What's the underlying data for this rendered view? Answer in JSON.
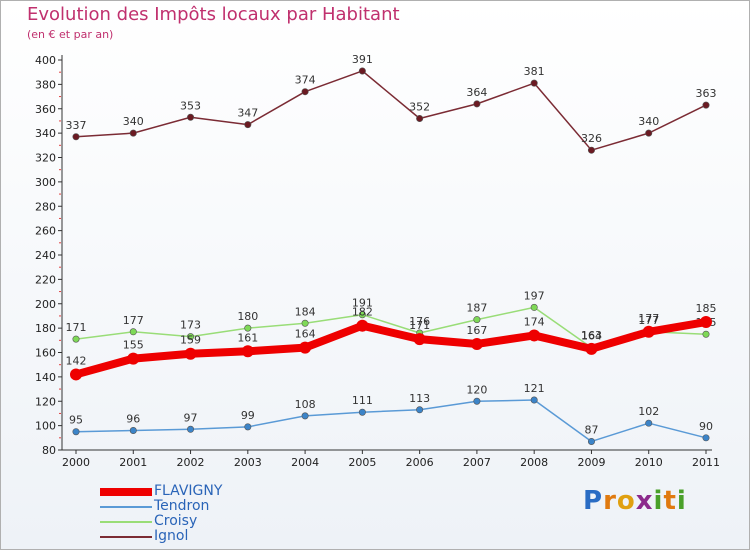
{
  "brand": {
    "letters": [
      "P",
      "r",
      "o",
      "x",
      "i",
      "t",
      "i"
    ],
    "colors": [
      "#2a6cc4",
      "#e07a10",
      "#e0a010",
      "#8c2a8c",
      "#4aa02a",
      "#e07a10",
      "#4aa02a"
    ]
  },
  "chart_data": {
    "type": "line",
    "title": "Evolution des Impôts locaux par Habitant",
    "subtitle": "(en € et par an)",
    "xlabel": "",
    "ylabel": "",
    "categories": [
      "2000",
      "2001",
      "2002",
      "2003",
      "2004",
      "2005",
      "2006",
      "2007",
      "2008",
      "2009",
      "2010",
      "2011"
    ],
    "ylim": [
      80,
      400
    ],
    "yticks": [
      80,
      100,
      120,
      140,
      160,
      180,
      200,
      220,
      240,
      260,
      280,
      300,
      320,
      340,
      360,
      380,
      400
    ],
    "grid": false,
    "legend_position": "bottom-left",
    "series": [
      {
        "name": "Ignol",
        "color": "#7b2b34",
        "marker": "#6b1a22",
        "values": [
          337,
          340,
          353,
          347,
          374,
          391,
          352,
          364,
          381,
          326,
          340,
          363
        ]
      },
      {
        "name": "Croisy",
        "color": "#99dd77",
        "marker": "#7ed957",
        "values": [
          171,
          177,
          173,
          180,
          184,
          191,
          176,
          187,
          197,
          164,
          177,
          175
        ]
      },
      {
        "name": "Tendron",
        "color": "#5a9ad6",
        "marker": "#3c84c8",
        "values": [
          95,
          96,
          97,
          99,
          108,
          111,
          113,
          120,
          121,
          87,
          102,
          90
        ]
      },
      {
        "name": "FLAVIGNY",
        "color": "#ee0000",
        "marker": "#ee0000",
        "values": [
          142,
          155,
          159,
          161,
          164,
          182,
          171,
          167,
          174,
          163,
          177,
          185
        ]
      }
    ]
  }
}
